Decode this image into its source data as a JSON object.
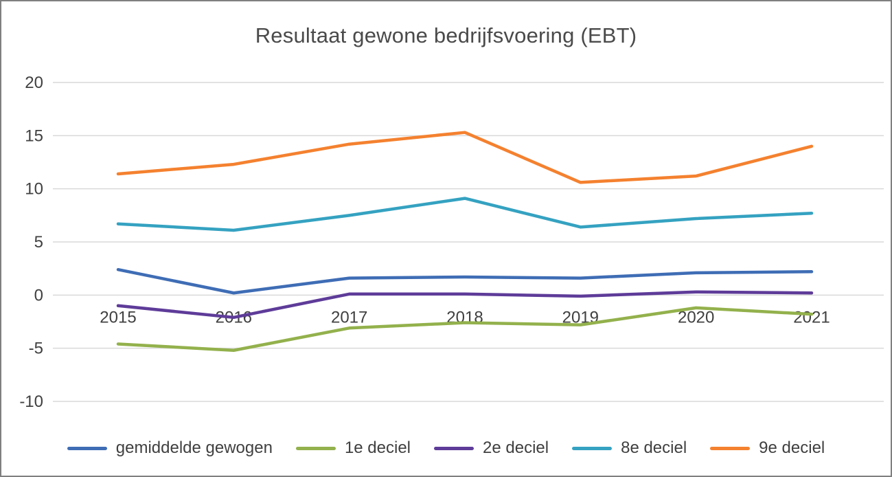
{
  "chart": {
    "title": "Resultaat gewone bedrijfsvoering (EBT)"
  },
  "chart_data": {
    "type": "line",
    "title": "Resultaat gewone bedrijfsvoering (EBT)",
    "categories": [
      "2015",
      "2016",
      "2017",
      "2018",
      "2019",
      "2020",
      "2021"
    ],
    "series": [
      {
        "name": "gemiddelde gewogen",
        "color": "#3f6db5",
        "values": [
          2.4,
          0.2,
          1.6,
          1.7,
          1.6,
          2.1,
          2.2
        ]
      },
      {
        "name": "1e deciel",
        "color": "#93b14c",
        "values": [
          -4.6,
          -5.2,
          -3.1,
          -2.6,
          -2.8,
          -1.2,
          -1.8
        ]
      },
      {
        "name": "2e deciel",
        "color": "#5e3c99",
        "values": [
          -1.0,
          -2.1,
          0.1,
          0.1,
          -0.1,
          0.3,
          0.2
        ]
      },
      {
        "name": "8e deciel",
        "color": "#35a2c1",
        "values": [
          6.7,
          6.1,
          7.5,
          9.1,
          6.4,
          7.2,
          7.7
        ]
      },
      {
        "name": "9e deciel",
        "color": "#f4812f",
        "values": [
          11.4,
          12.3,
          14.2,
          15.3,
          10.6,
          11.2,
          14.0
        ]
      }
    ],
    "ylim": [
      -10,
      20
    ],
    "yticks": [
      20,
      15,
      10,
      5,
      0,
      -5,
      -10
    ],
    "xlabel": "",
    "ylabel": "",
    "grid": "horizontal",
    "legend_position": "bottom",
    "gridline_color": "#d9d9d9"
  }
}
